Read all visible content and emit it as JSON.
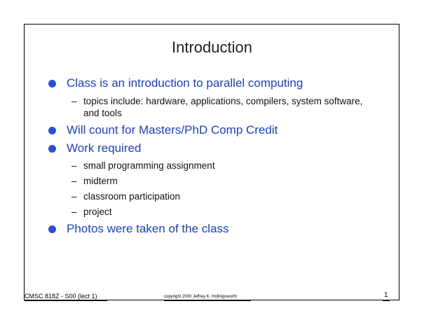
{
  "slide": {
    "title": "Introduction",
    "bullets": [
      {
        "text": "Class is an introduction to parallel computing",
        "subitems": [
          "topics include: hardware, applications, compilers, system software, and tools"
        ]
      },
      {
        "text": "Will count for Masters/PhD Comp Credit",
        "subitems": []
      },
      {
        "text": "Work required",
        "subitems": [
          "small programming assignment",
          "midterm",
          "classroom participation",
          "project"
        ]
      },
      {
        "text": "Photos were taken of the class",
        "subitems": []
      }
    ],
    "sub_marker": "–"
  },
  "footer": {
    "course": "CMSC 818Z - S00  (lect 1)",
    "copyright": "copyright 2000 Jeffrey K. Hollingsworth",
    "page_number": "1"
  },
  "colors": {
    "bullet_text": "#1a3fd8",
    "bullet_dot": "#2a4ee0",
    "frame": "#000000"
  }
}
